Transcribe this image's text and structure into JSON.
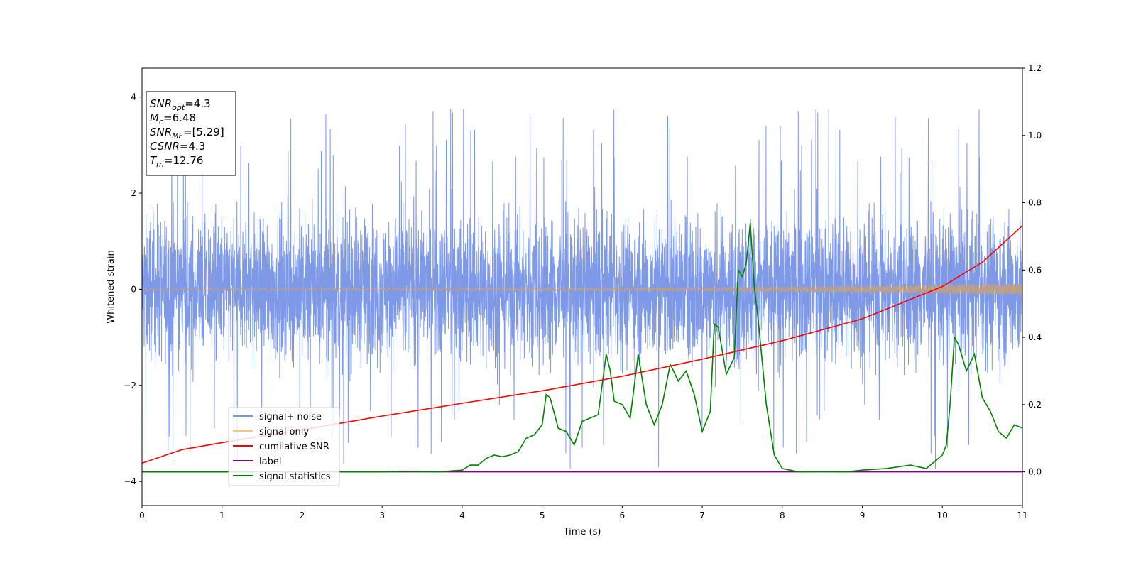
{
  "chart_data": {
    "type": "line",
    "xlabel": "Time (s)",
    "ylabel": "Whitened strain",
    "xlim": [
      0,
      11
    ],
    "ylim": [
      -4.5,
      4.6
    ],
    "y2lim": [
      -0.1,
      1.2
    ],
    "x_ticks": [
      0,
      1,
      2,
      3,
      4,
      5,
      6,
      7,
      8,
      9,
      10,
      11
    ],
    "y_ticks": [
      -4,
      -2,
      0,
      2,
      4
    ],
    "y2_ticks": [
      "0.0",
      "0.2",
      "0.4",
      "0.6",
      "0.8",
      "1.0",
      "1.2"
    ],
    "grid": false,
    "legend_position": "lower-left",
    "annotation": [
      {
        "base": "SNR",
        "sub": "opt",
        "value": "=4.3"
      },
      {
        "base": "M",
        "sub": "c",
        "value": "=6.48"
      },
      {
        "base": "SNR",
        "sub": "MF",
        "value": "=[5.29]"
      },
      {
        "base": "CSNR",
        "sub": "",
        "value": "=4.3"
      },
      {
        "base": "T",
        "sub": "m",
        "value": "=12.76"
      }
    ],
    "series": [
      {
        "name": "signal+ noise",
        "color": "#7893e8",
        "axis": "left",
        "envelope_typical": [
          -2.2,
          2.3
        ],
        "envelope_extreme": [
          -4.1,
          4.15
        ]
      },
      {
        "name": "signal only",
        "color": "#f5c77e",
        "axis": "left",
        "amplitude": [
          [
            0,
            0.02
          ],
          [
            7,
            0.03
          ],
          [
            9,
            0.06
          ],
          [
            11,
            0.11
          ]
        ]
      },
      {
        "name": "cumilative SNR",
        "color": "#ff0000",
        "axis": "right",
        "x": [
          0,
          0.5,
          1,
          2,
          3,
          4,
          5,
          6,
          7,
          8,
          9,
          10,
          10.5,
          11
        ],
        "y": [
          0.026,
          0.066,
          0.087,
          0.125,
          0.166,
          0.204,
          0.241,
          0.284,
          0.335,
          0.39,
          0.455,
          0.551,
          0.623,
          0.732
        ]
      },
      {
        "name": "label",
        "color": "#800080",
        "axis": "right",
        "x": [
          0,
          11
        ],
        "y": [
          0,
          0
        ]
      },
      {
        "name": "signal statistics",
        "color": "#008000",
        "axis": "right",
        "x": [
          0,
          1,
          2,
          3,
          3.3,
          3.7,
          4,
          4.1,
          4.2,
          4.3,
          4.4,
          4.5,
          4.6,
          4.7,
          4.8,
          4.9,
          5.0,
          5.05,
          5.1,
          5.2,
          5.3,
          5.4,
          5.5,
          5.6,
          5.7,
          5.8,
          5.85,
          5.9,
          6.0,
          6.1,
          6.2,
          6.3,
          6.4,
          6.5,
          6.6,
          6.7,
          6.8,
          6.9,
          7.0,
          7.1,
          7.15,
          7.2,
          7.3,
          7.4,
          7.45,
          7.5,
          7.55,
          7.6,
          7.65,
          7.7,
          7.8,
          7.9,
          8.0,
          8.1,
          8.2,
          8.5,
          8.8,
          9.0,
          9.3,
          9.6,
          9.8,
          9.9,
          10.0,
          10.05,
          10.1,
          10.15,
          10.2,
          10.3,
          10.4,
          10.5,
          10.6,
          10.7,
          10.8,
          10.9,
          11.0
        ],
        "y": [
          0.0,
          0.0,
          0.0,
          0.0,
          0.002,
          0.0,
          0.005,
          0.02,
          0.02,
          0.04,
          0.05,
          0.045,
          0.05,
          0.06,
          0.1,
          0.11,
          0.14,
          0.23,
          0.22,
          0.13,
          0.12,
          0.08,
          0.15,
          0.16,
          0.17,
          0.35,
          0.3,
          0.21,
          0.2,
          0.16,
          0.35,
          0.2,
          0.14,
          0.2,
          0.32,
          0.27,
          0.3,
          0.23,
          0.12,
          0.18,
          0.44,
          0.43,
          0.29,
          0.34,
          0.6,
          0.58,
          0.62,
          0.74,
          0.55,
          0.45,
          0.2,
          0.05,
          0.01,
          0.005,
          0.0,
          0.001,
          0.0,
          0.005,
          0.01,
          0.02,
          0.01,
          0.03,
          0.05,
          0.08,
          0.21,
          0.4,
          0.38,
          0.3,
          0.35,
          0.22,
          0.18,
          0.12,
          0.1,
          0.14,
          0.13
        ]
      }
    ]
  }
}
